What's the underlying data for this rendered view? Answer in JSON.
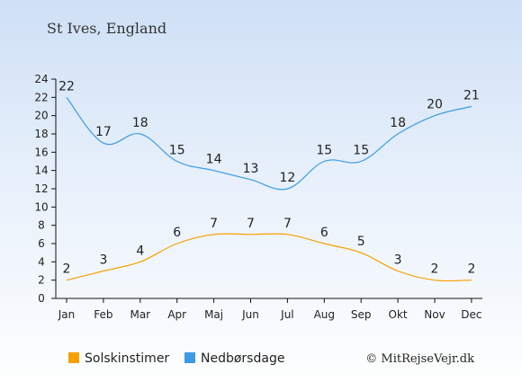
{
  "chart_data": {
    "type": "line",
    "title": "St Ives, England",
    "categories": [
      "Jan",
      "Feb",
      "Mar",
      "Apr",
      "Maj",
      "Jun",
      "Jul",
      "Aug",
      "Sep",
      "Okt",
      "Nov",
      "Dec"
    ],
    "yticks": [
      0,
      2,
      4,
      6,
      8,
      10,
      12,
      14,
      16,
      18,
      20,
      22,
      24
    ],
    "ylim": [
      0,
      24
    ],
    "grid": false,
    "legend_position": "bottom-left",
    "series": [
      {
        "name": "Solskinstimer",
        "color": "#f5a000",
        "values": [
          2,
          3,
          4,
          6,
          7,
          7,
          7,
          6,
          5,
          3,
          2,
          2
        ]
      },
      {
        "name": "Nedbørsdage",
        "color": "#3d9be3",
        "values": [
          22,
          17,
          18,
          15,
          14,
          13,
          12,
          15,
          15,
          18,
          20,
          21
        ]
      }
    ],
    "credit": "© MitRejseVejr.dk"
  }
}
